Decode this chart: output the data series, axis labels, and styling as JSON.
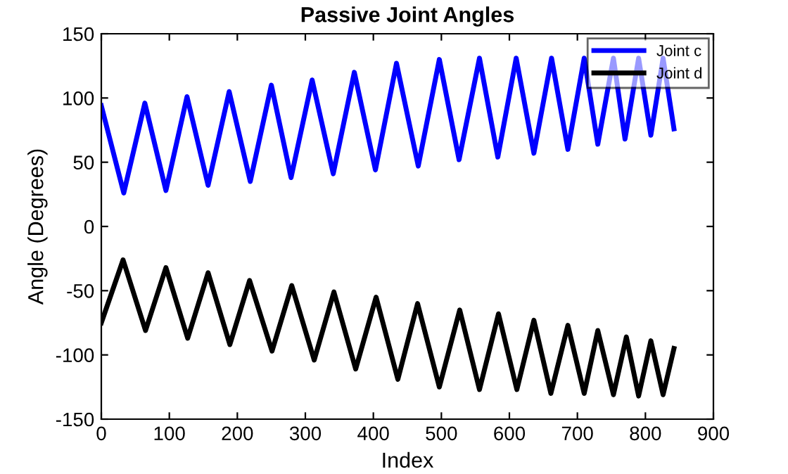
{
  "chart_data": {
    "type": "line",
    "title": "Passive Joint Angles",
    "xlabel": "Index",
    "ylabel": "Angle (Degrees)",
    "xlim": [
      0,
      900
    ],
    "ylim": [
      -150,
      150
    ],
    "xticks": [
      0,
      100,
      200,
      300,
      400,
      500,
      600,
      700,
      800,
      900
    ],
    "yticks": [
      -150,
      -100,
      -50,
      0,
      50,
      100,
      150
    ],
    "grid": false,
    "legend": "top right",
    "marker": "none",
    "line_style": "solid",
    "series": [
      {
        "name": "Joint c",
        "color": "#0000ff",
        "x": [
          0,
          33,
          64,
          95,
          126,
          157,
          188,
          219,
          250,
          279,
          310,
          341,
          372,
          403,
          434,
          466,
          497,
          526,
          556,
          583,
          610,
          636,
          662,
          686,
          710,
          730,
          753,
          770,
          790,
          808,
          826,
          842
        ],
        "values": [
          94,
          26,
          96,
          28,
          101,
          32,
          105,
          35,
          110,
          38,
          114,
          41,
          120,
          44,
          127,
          47,
          130,
          52,
          131,
          54,
          131,
          57,
          131,
          60,
          131,
          64,
          131,
          68,
          131,
          71,
          131,
          76
        ]
      },
      {
        "name": "Joint d",
        "color": "#000000",
        "x": [
          0,
          32,
          65,
          95,
          127,
          157,
          189,
          218,
          251,
          280,
          313,
          342,
          374,
          404,
          436,
          465,
          497,
          527,
          556,
          584,
          611,
          636,
          661,
          686,
          710,
          730,
          753,
          772,
          790,
          808,
          826,
          842
        ],
        "values": [
          -75,
          -26,
          -81,
          -32,
          -87,
          -36,
          -92,
          -42,
          -97,
          -46,
          -104,
          -51,
          -111,
          -55,
          -119,
          -60,
          -125,
          -65,
          -127,
          -68,
          -127,
          -73,
          -130,
          -77,
          -130,
          -81,
          -131,
          -86,
          -132,
          -89,
          -131,
          -95
        ]
      }
    ]
  }
}
